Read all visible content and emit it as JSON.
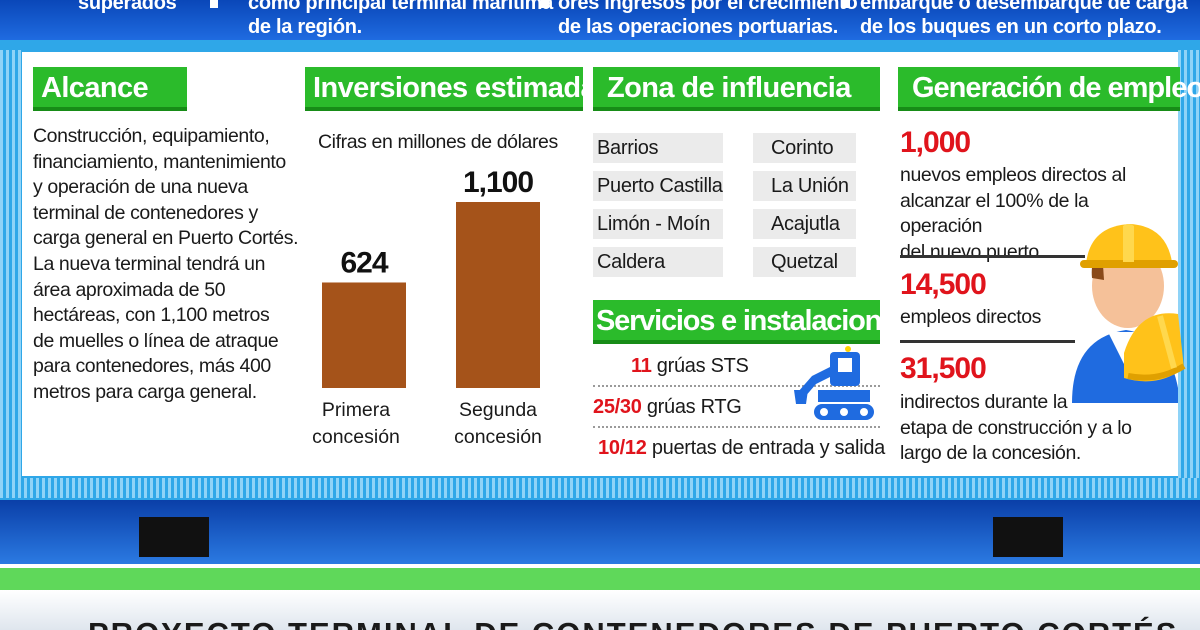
{
  "top": {
    "col1": [
      "superados"
    ],
    "col2": [
      "como principal terminal marítima",
      "de la región."
    ],
    "col3": [
      "ores ingresos por el crecimiento",
      "de las operaciones portuarias."
    ],
    "col4": [
      "embarque o desembarque de carga",
      "de los buques en un corto plazo."
    ]
  },
  "alcance": {
    "title": "Alcance",
    "lines": [
      "Construcción, equipamiento,",
      "financiamiento, mantenimiento",
      " y operación de una nueva",
      "terminal de contenedores y",
      "carga general en Puerto Cortés.",
      "La nueva terminal tendrá un",
      " área aproximada de 50",
      "hectáreas, con 1,100 metros",
      "de muelles o línea de atraque",
      "para contenedores, más 400",
      "metros para carga general."
    ]
  },
  "inversiones": {
    "title": "Inversiones estimadas",
    "caption": "Cifras en millones de dólares"
  },
  "chart_data": {
    "type": "bar",
    "categories": [
      [
        "Primera",
        "concesión"
      ],
      [
        "Segunda",
        "concesión"
      ]
    ],
    "values": [
      624,
      1100
    ],
    "data_labels": [
      "624",
      "1,100"
    ],
    "ylim": [
      0,
      1100
    ],
    "bar_color": "#a5531a",
    "title": "Inversiones estimadas",
    "ylabel": "Cifras en millones de dólares"
  },
  "zona": {
    "title": "Zona de influencia",
    "left": [
      "Barrios",
      "Puerto Castilla",
      "Limón - Moín",
      "Caldera"
    ],
    "right": [
      "Corinto",
      "La Unión",
      "Acajutla",
      "Quetzal"
    ]
  },
  "servicios": {
    "title": "Servicios e instalaciones",
    "rows": [
      {
        "num": "11",
        "label": " grúas STS"
      },
      {
        "num": "25/30",
        "label": " grúas RTG"
      },
      {
        "num": "10/12",
        "label": " puertas de entrada y salida"
      }
    ],
    "icon": "excavator-icon"
  },
  "empleo": {
    "title": "Generación de empleo",
    "items": [
      {
        "num": "1,000",
        "lines": [
          "nuevos empleos directos al",
          "alcanzar el 100% de la operación",
          "del nuevo puerto."
        ]
      },
      {
        "num": "14,500",
        "lines": [
          "empleos directos"
        ]
      },
      {
        "num": "31,500",
        "lines": [
          "indirectos durante la",
          "etapa de construcción y a lo",
          "largo de la concesión."
        ]
      }
    ],
    "icon": "worker-hardhat-icon"
  },
  "bottom_title": "PROYECTO TERMINAL DE CONTENEDORES DE PUERTO CORTÉS",
  "colors": {
    "header_green": "#2bbb2b",
    "frame_blue": "#2fa7e8",
    "highlight_red": "#e0141c",
    "bar_brown": "#a5531a"
  }
}
